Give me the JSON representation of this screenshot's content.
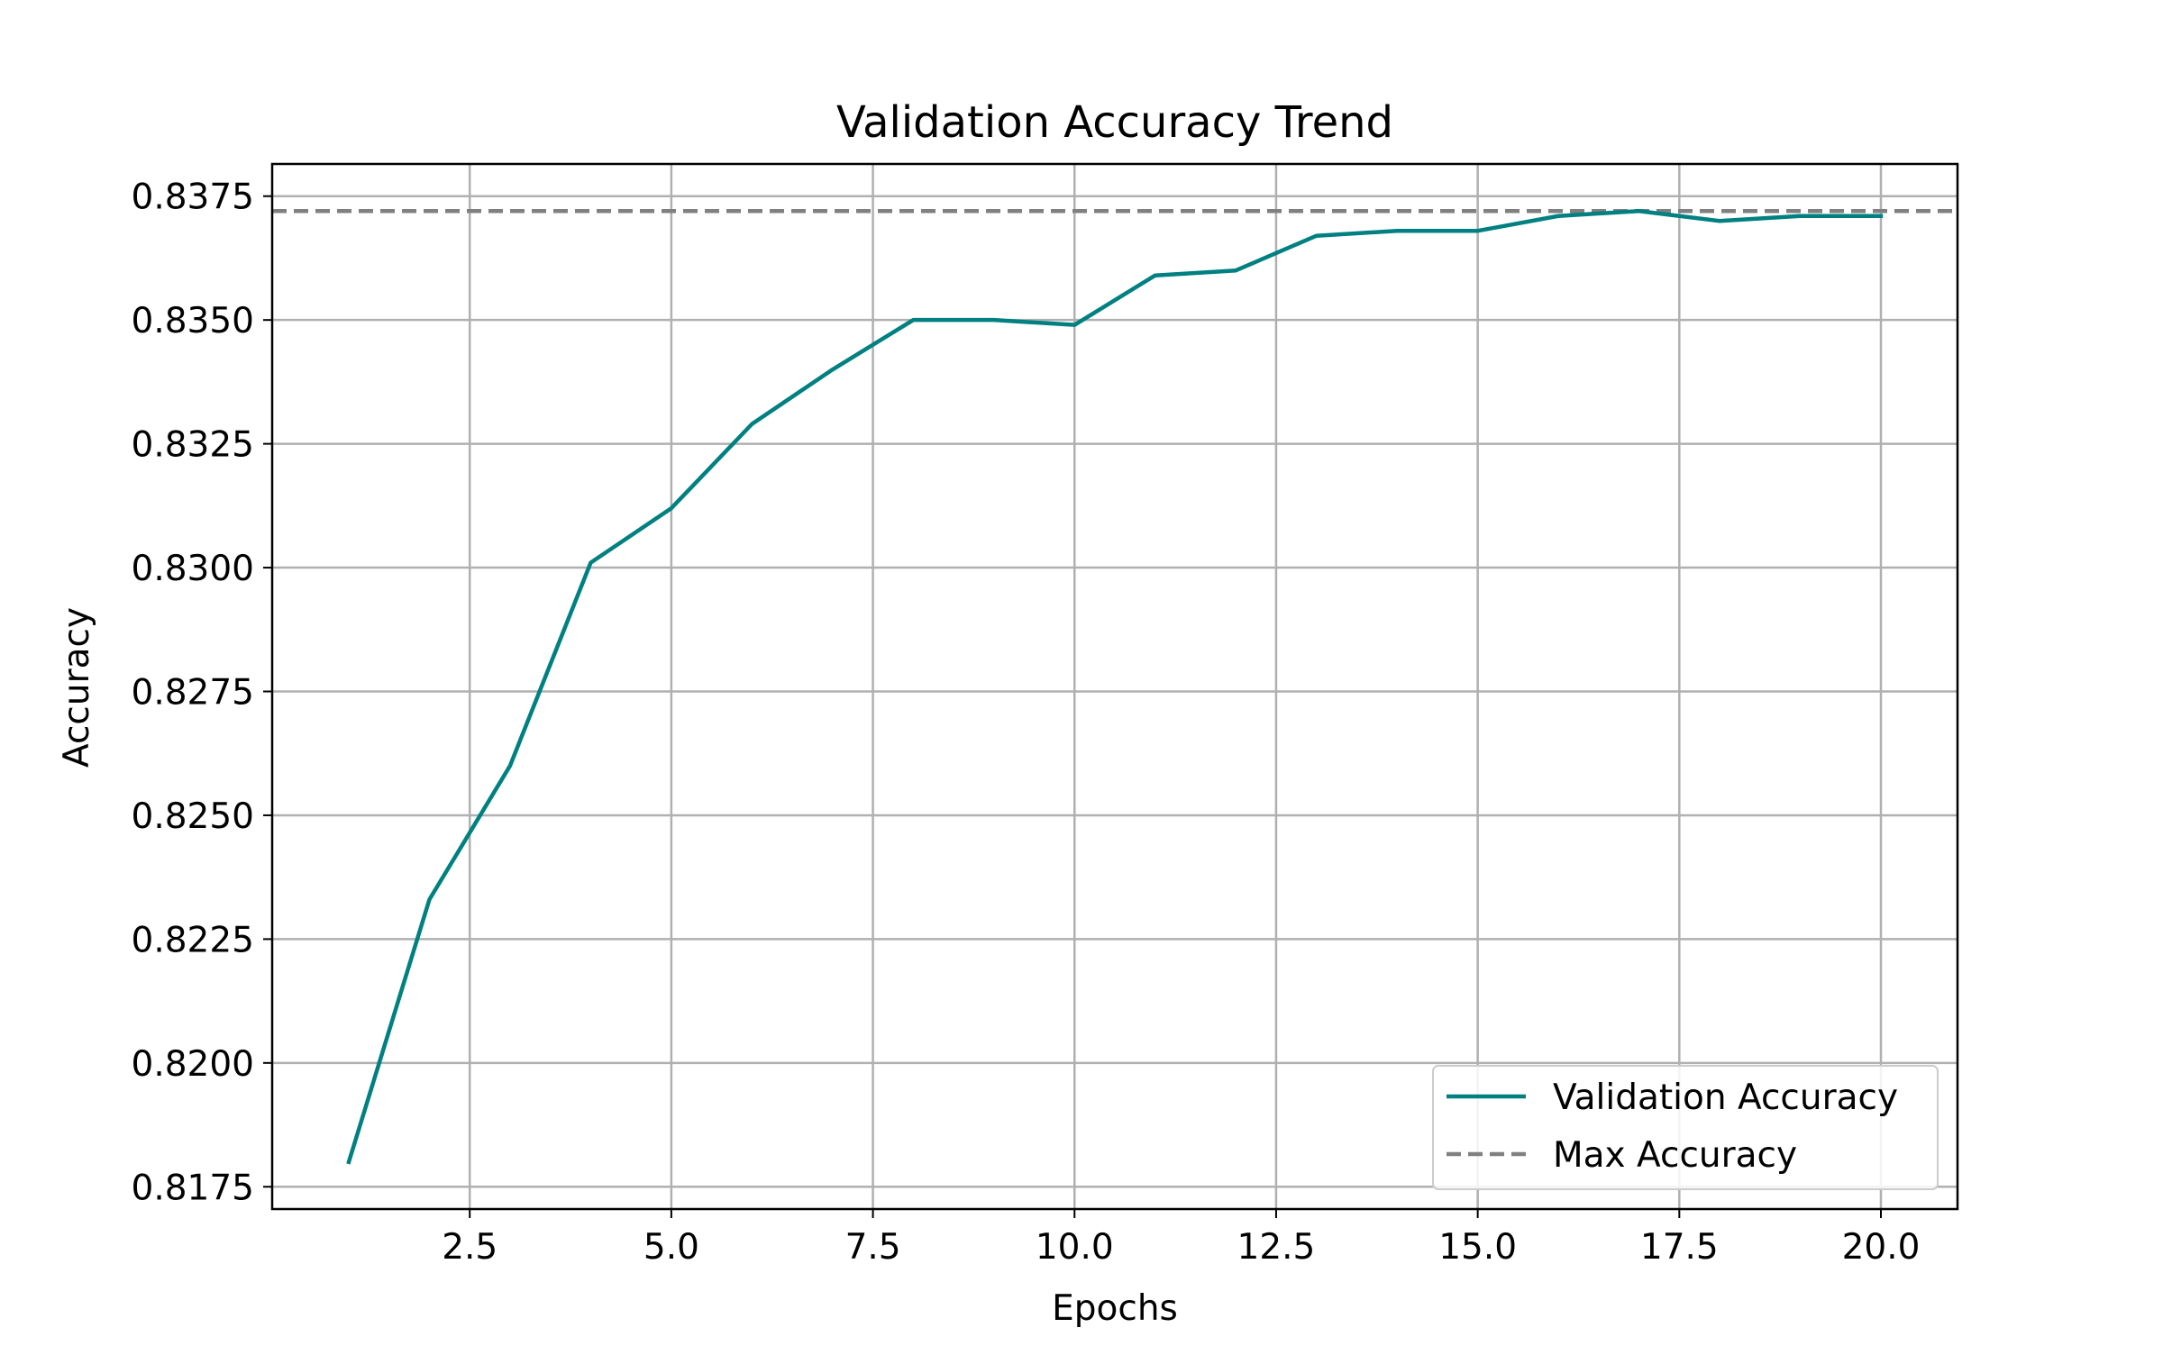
{
  "chart_data": {
    "type": "line",
    "title": "Validation Accuracy Trend",
    "xlabel": "Epochs",
    "ylabel": "Accuracy",
    "xlim": [
      0.05,
      20.95
    ],
    "ylim": [
      0.81705,
      0.83815
    ],
    "xticks": [
      2.5,
      5.0,
      7.5,
      10.0,
      12.5,
      15.0,
      17.5,
      20.0
    ],
    "xtick_labels": [
      "2.5",
      "5.0",
      "7.5",
      "10.0",
      "12.5",
      "15.0",
      "17.5",
      "20.0"
    ],
    "yticks": [
      0.8175,
      0.82,
      0.8225,
      0.825,
      0.8275,
      0.83,
      0.8325,
      0.835,
      0.8375
    ],
    "ytick_labels": [
      "0.8175",
      "0.8200",
      "0.8225",
      "0.8250",
      "0.8275",
      "0.8300",
      "0.8325",
      "0.8350",
      "0.8375"
    ],
    "grid": true,
    "legend_position": "lower-right",
    "x": [
      1,
      2,
      3,
      4,
      5,
      6,
      7,
      8,
      9,
      10,
      11,
      12,
      13,
      14,
      15,
      16,
      17,
      18,
      19,
      20
    ],
    "series": [
      {
        "name": "Validation Accuracy",
        "color": "#008080",
        "style": "solid",
        "values": [
          0.818,
          0.8233,
          0.826,
          0.8301,
          0.8312,
          0.8329,
          0.834,
          0.835,
          0.835,
          0.8349,
          0.8359,
          0.836,
          0.8367,
          0.8368,
          0.8368,
          0.8371,
          0.8372,
          0.837,
          0.8371,
          0.8371
        ]
      },
      {
        "name": "Max Accuracy",
        "color": "#808080",
        "style": "dashed",
        "hline": 0.8372
      }
    ]
  }
}
